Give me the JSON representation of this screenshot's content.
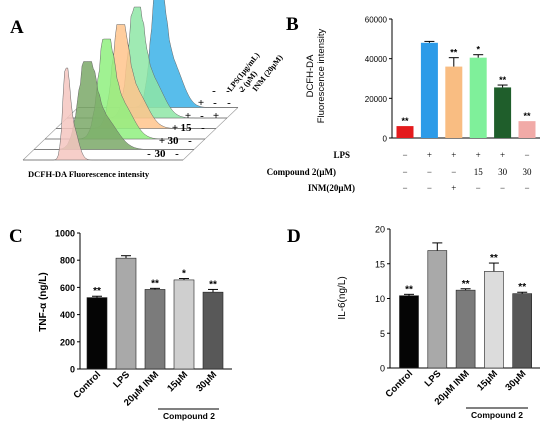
{
  "panel_labels": {
    "a": "A",
    "b": "B",
    "c": "C",
    "d": "D"
  },
  "colors": {
    "flow_fill": [
      "#f4c6c0",
      "#7aa867",
      "#8ff07f",
      "#ffc48c",
      "#8ee6a6",
      "#3bb2e8"
    ],
    "b_bars": [
      "#e41a1c",
      "#2c9be8",
      "#f9bd82",
      "#7ff09a",
      "#1f5e2b",
      "#f1aaa7"
    ],
    "c_bars": [
      "#050505",
      "#a9a9a9",
      "#7b7b7b",
      "#cfcfcf",
      "#585858"
    ],
    "d_bars": [
      "#050505",
      "#a9a9a9",
      "#7b7b7b",
      "#dcdcdc",
      "#585858"
    ]
  },
  "chart_data": [
    {
      "id": "A",
      "type": "area",
      "xlabel": "DCFH-DA Fluorescence intensity",
      "depth_labels": [
        "LPS(1μg/mL)",
        "2 (μM)",
        "INM (20μM)"
      ],
      "condition_table": [
        [
          "-",
          "-",
          "-"
        ],
        [
          "+",
          "-",
          "-"
        ],
        [
          "+",
          "-",
          "+"
        ],
        [
          "+",
          "15",
          "-"
        ],
        [
          "+",
          "30",
          "-"
        ],
        [
          "-",
          "30",
          "-"
        ]
      ]
    },
    {
      "id": "B",
      "type": "bar",
      "ylabel_lines": [
        "DCFH-DA",
        "Fluorescence intensity"
      ],
      "ylim": [
        0,
        60000
      ],
      "yticks": [
        "0",
        "20000",
        "40000",
        "60000"
      ],
      "values": [
        6000,
        48000,
        36000,
        40500,
        25500,
        8500
      ],
      "errors": [
        0,
        700,
        4500,
        1500,
        1200,
        0
      ],
      "significance": [
        "**",
        "",
        "**",
        "*",
        "**",
        "**"
      ],
      "condition_rows": [
        {
          "label": "LPS",
          "values": [
            "−",
            "+",
            "+",
            "+",
            "+",
            "−"
          ]
        },
        {
          "label": "Compound 2(μM)",
          "values": [
            "−",
            "−",
            "−",
            "15",
            "30",
            "30"
          ]
        },
        {
          "label": "INM(20μM)",
          "values": [
            "−",
            "−",
            "+",
            "−",
            "−",
            "−"
          ]
        }
      ]
    },
    {
      "id": "C",
      "type": "bar",
      "ylabel": "TNF-α (ng/L)",
      "ylim": [
        0,
        1000
      ],
      "yticks": [
        "0",
        "200",
        "400",
        "600",
        "800",
        "1000"
      ],
      "categories": [
        "Control",
        "LPS",
        "20μM INM",
        "15μM",
        "30μM"
      ],
      "values": [
        525,
        815,
        585,
        655,
        565
      ],
      "errors": [
        10,
        18,
        8,
        10,
        20
      ],
      "significance": [
        "**",
        "",
        "**",
        "*",
        "**"
      ],
      "group_label": "Compound 2"
    },
    {
      "id": "D",
      "type": "bar",
      "ylabel": "IL-6(ng/L)",
      "ylim": [
        0,
        20
      ],
      "yticks": [
        "0",
        "5",
        "10",
        "15",
        "20"
      ],
      "categories": [
        "Control",
        "LPS",
        "20μM INM",
        "15μM",
        "30μM"
      ],
      "values": [
        10.4,
        16.9,
        11.2,
        13.9,
        10.7
      ],
      "errors": [
        0.2,
        1.1,
        0.2,
        1.2,
        0.2
      ],
      "significance": [
        "**",
        "",
        "**",
        "**",
        "**"
      ],
      "group_label": "Compound 2"
    }
  ]
}
